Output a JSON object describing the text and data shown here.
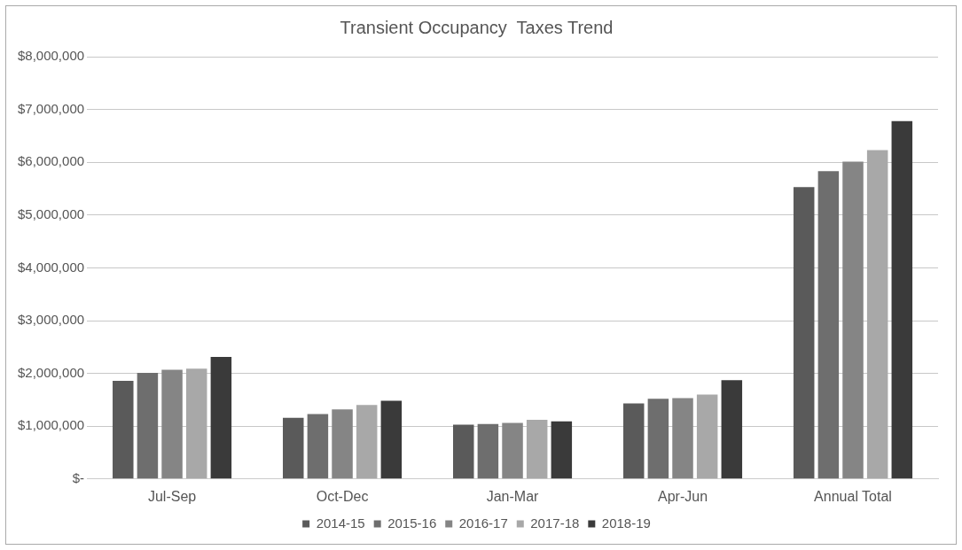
{
  "chart_data": {
    "type": "bar",
    "title": "Transient Occupancy  Taxes Trend",
    "categories": [
      "Jul-Sep",
      "Oct-Dec",
      "Jan-Mar",
      "Apr-Jun",
      "Annual Total"
    ],
    "series": [
      {
        "name": "2014-15",
        "color": "#5a5a5a",
        "values": [
          1860000,
          1160000,
          1030000,
          1430000,
          5530000
        ]
      },
      {
        "name": "2015-16",
        "color": "#6e6e6e",
        "values": [
          2010000,
          1230000,
          1040000,
          1520000,
          5830000
        ]
      },
      {
        "name": "2016-17",
        "color": "#858585",
        "values": [
          2070000,
          1320000,
          1060000,
          1530000,
          6010000
        ]
      },
      {
        "name": "2017-18",
        "color": "#a8a8a8",
        "values": [
          2090000,
          1400000,
          1120000,
          1600000,
          6230000
        ]
      },
      {
        "name": "2018-19",
        "color": "#3a3a3a",
        "values": [
          2310000,
          1480000,
          1090000,
          1870000,
          6780000
        ]
      }
    ],
    "ylim": [
      0,
      8000000
    ],
    "yticks": [
      {
        "value": 0,
        "label": "$-"
      },
      {
        "value": 1000000,
        "label": "$1,000,000"
      },
      {
        "value": 2000000,
        "label": "$2,000,000"
      },
      {
        "value": 3000000,
        "label": "$3,000,000"
      },
      {
        "value": 4000000,
        "label": "$4,000,000"
      },
      {
        "value": 5000000,
        "label": "$5,000,000"
      },
      {
        "value": 6000000,
        "label": "$6,000,000"
      },
      {
        "value": 7000000,
        "label": "$7,000,000"
      },
      {
        "value": 8000000,
        "label": "$8,000,000"
      }
    ],
    "grid": "y",
    "legend": "bottom"
  }
}
